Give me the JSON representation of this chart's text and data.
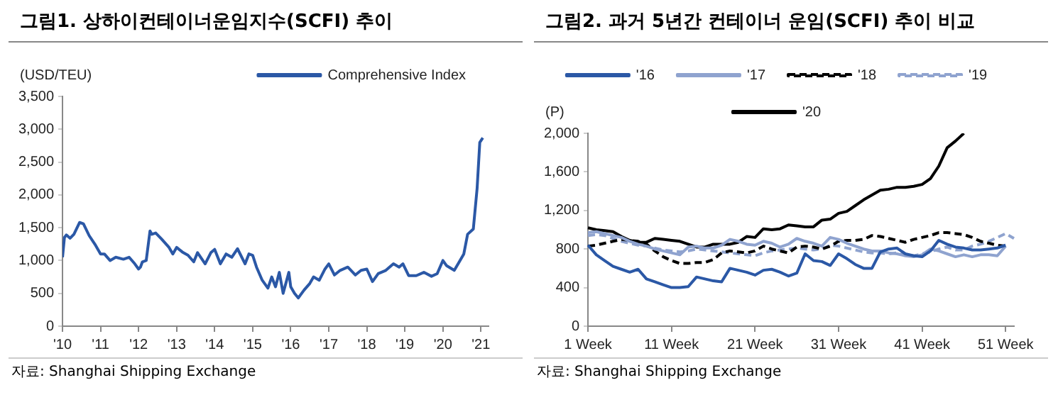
{
  "chart_data": [
    {
      "type": "line",
      "title": "그림1. 상하이컨테이너운임지수(SCFI) 추이",
      "ylabel": "(USD/TEU)",
      "annotations": [
        "자료: Shanghai Shipping Exchange"
      ],
      "legend": "top right",
      "grid": false,
      "marker": "none",
      "line_style": "solid",
      "xlim": [
        2010,
        2021.2
      ],
      "xticks": [
        {
          "value": 2010,
          "label": "'10"
        },
        {
          "value": 2011,
          "label": "'11"
        },
        {
          "value": 2012,
          "label": "'12"
        },
        {
          "value": 2013,
          "label": "'13"
        },
        {
          "value": 2014,
          "label": "'14"
        },
        {
          "value": 2015,
          "label": "'15"
        },
        {
          "value": 2016,
          "label": "'16"
        },
        {
          "value": 2017,
          "label": "'17"
        },
        {
          "value": 2018,
          "label": "'18"
        },
        {
          "value": 2019,
          "label": "'19"
        },
        {
          "value": 2020,
          "label": "'20"
        },
        {
          "value": 2021,
          "label": "'21"
        }
      ],
      "ylim": [
        0,
        3500
      ],
      "yticks": [
        {
          "value": 0,
          "label": "0"
        },
        {
          "value": 500,
          "label": "500"
        },
        {
          "value": 1000,
          "label": "1,000"
        },
        {
          "value": 1500,
          "label": "1,500"
        },
        {
          "value": 2000,
          "label": "2,000"
        },
        {
          "value": 2500,
          "label": "2,500"
        },
        {
          "value": 3000,
          "label": "3,000"
        },
        {
          "value": 3500,
          "label": "3,500"
        }
      ],
      "x": [
        2010.0,
        2010.05,
        2010.1,
        2010.2,
        2010.3,
        2010.45,
        2010.55,
        2010.7,
        2010.85,
        2011.0,
        2011.1,
        2011.25,
        2011.4,
        2011.6,
        2011.75,
        2011.9,
        2012.0,
        2012.05,
        2012.1,
        2012.2,
        2012.3,
        2012.35,
        2012.45,
        2012.6,
        2012.8,
        2012.9,
        2013.0,
        2013.15,
        2013.3,
        2013.45,
        2013.55,
        2013.75,
        2013.9,
        2014.0,
        2014.15,
        2014.3,
        2014.45,
        2014.6,
        2014.8,
        2014.9,
        2015.0,
        2015.1,
        2015.25,
        2015.4,
        2015.5,
        2015.6,
        2015.7,
        2015.8,
        2015.95,
        2016.0,
        2016.1,
        2016.2,
        2016.35,
        2016.5,
        2016.6,
        2016.75,
        2016.9,
        2017.0,
        2017.15,
        2017.3,
        2017.5,
        2017.7,
        2017.85,
        2018.0,
        2018.15,
        2018.3,
        2018.5,
        2018.7,
        2018.85,
        2018.95,
        2019.1,
        2019.3,
        2019.5,
        2019.7,
        2019.85,
        2020.0,
        2020.1,
        2020.3,
        2020.45,
        2020.55,
        2020.65,
        2020.8,
        2020.9,
        2020.97,
        2021.05
      ],
      "series": [
        {
          "name": "Comprehensive Index",
          "color": "#2b58a6",
          "values": [
            1050,
            1350,
            1390,
            1340,
            1400,
            1580,
            1560,
            1380,
            1250,
            1100,
            1100,
            1000,
            1050,
            1020,
            1050,
            950,
            870,
            900,
            980,
            1000,
            1450,
            1400,
            1420,
            1330,
            1200,
            1100,
            1200,
            1130,
            1080,
            980,
            1120,
            950,
            1120,
            1170,
            950,
            1100,
            1050,
            1180,
            950,
            1100,
            1080,
            900,
            700,
            580,
            750,
            600,
            820,
            500,
            820,
            600,
            500,
            430,
            550,
            650,
            750,
            700,
            870,
            950,
            780,
            850,
            900,
            780,
            850,
            870,
            680,
            800,
            850,
            950,
            900,
            950,
            770,
            770,
            820,
            760,
            800,
            1000,
            920,
            850,
            1000,
            1100,
            1400,
            1480,
            2100,
            2800,
            2870
          ]
        }
      ]
    },
    {
      "type": "line",
      "title": "그림2. 과거 5년간 컨테이너 운임(SCFI) 추이 비교",
      "ylabel": "(P)",
      "annotations": [
        "자료: Shanghai Shipping Exchange"
      ],
      "legend": "top",
      "grid": false,
      "marker": "none",
      "categories": [
        "1 Week",
        null,
        null,
        null,
        null,
        null,
        null,
        null,
        null,
        null,
        "11 Week",
        null,
        null,
        null,
        null,
        null,
        null,
        null,
        null,
        null,
        "21 Week",
        null,
        null,
        null,
        null,
        null,
        null,
        null,
        null,
        null,
        "31 Week",
        null,
        null,
        null,
        null,
        null,
        null,
        null,
        null,
        null,
        "41 Week",
        null,
        null,
        null,
        null,
        null,
        null,
        null,
        null,
        null,
        "51 Week",
        null
      ],
      "ylim": [
        0,
        2000
      ],
      "yticks": [
        {
          "value": 0,
          "label": "0"
        },
        {
          "value": 400,
          "label": "400"
        },
        {
          "value": 800,
          "label": "800"
        },
        {
          "value": 1200,
          "label": "1,200"
        },
        {
          "value": 1600,
          "label": "1,600"
        },
        {
          "value": 2000,
          "label": "2,000"
        }
      ],
      "series": [
        {
          "name": "'16",
          "color": "#2b58a6",
          "line_style": "solid",
          "values": [
            840,
            740,
            680,
            620,
            590,
            560,
            590,
            490,
            460,
            430,
            400,
            400,
            410,
            510,
            490,
            470,
            460,
            600,
            580,
            560,
            530,
            580,
            590,
            560,
            520,
            550,
            750,
            680,
            670,
            630,
            750,
            700,
            640,
            600,
            600,
            770,
            800,
            810,
            750,
            730,
            720,
            780,
            890,
            850,
            820,
            810,
            790,
            790,
            800,
            810,
            840,
            null
          ]
        },
        {
          "name": "'17",
          "color": "#8fa3cf",
          "line_style": "solid",
          "values": [
            970,
            980,
            960,
            940,
            920,
            880,
            850,
            830,
            800,
            780,
            760,
            740,
            820,
            830,
            810,
            810,
            840,
            900,
            880,
            850,
            840,
            880,
            860,
            820,
            850,
            910,
            880,
            860,
            830,
            920,
            900,
            860,
            830,
            800,
            780,
            780,
            760,
            750,
            730,
            720,
            740,
            800,
            780,
            750,
            720,
            740,
            720,
            740,
            740,
            730,
            830,
            null
          ]
        },
        {
          "name": "'18",
          "color": "#000000",
          "line_style": "dashed",
          "values": [
            830,
            840,
            860,
            880,
            900,
            890,
            880,
            850,
            780,
            720,
            680,
            650,
            650,
            660,
            660,
            690,
            760,
            780,
            770,
            760,
            780,
            830,
            800,
            780,
            760,
            820,
            830,
            820,
            800,
            830,
            880,
            890,
            890,
            900,
            940,
            930,
            910,
            890,
            870,
            900,
            920,
            940,
            970,
            970,
            960,
            950,
            920,
            880,
            860,
            840,
            830,
            null
          ]
        },
        {
          "name": "'19",
          "color": "#8fa3cf",
          "line_style": "dashed",
          "values": [
            940,
            950,
            940,
            910,
            880,
            860,
            840,
            830,
            810,
            790,
            780,
            770,
            780,
            800,
            790,
            780,
            770,
            760,
            750,
            740,
            730,
            760,
            780,
            790,
            800,
            810,
            800,
            790,
            800,
            840,
            830,
            810,
            790,
            770,
            760,
            760,
            750,
            760,
            740,
            730,
            750,
            770,
            800,
            820,
            790,
            790,
            830,
            850,
            880,
            920,
            960,
            910
          ]
        },
        {
          "name": "'20",
          "color": "#000000",
          "line_style": "solid",
          "values": [
            1020,
            1000,
            990,
            980,
            930,
            890,
            870,
            870,
            910,
            900,
            890,
            880,
            850,
            820,
            820,
            850,
            850,
            850,
            870,
            930,
            920,
            1010,
            1000,
            1010,
            1050,
            1040,
            1030,
            1030,
            1100,
            1110,
            1170,
            1190,
            1250,
            1310,
            1360,
            1410,
            1420,
            1440,
            1440,
            1450,
            1470,
            1530,
            1660,
            1850,
            1920,
            2000,
            null,
            null,
            null,
            null,
            null,
            null
          ]
        }
      ]
    }
  ]
}
